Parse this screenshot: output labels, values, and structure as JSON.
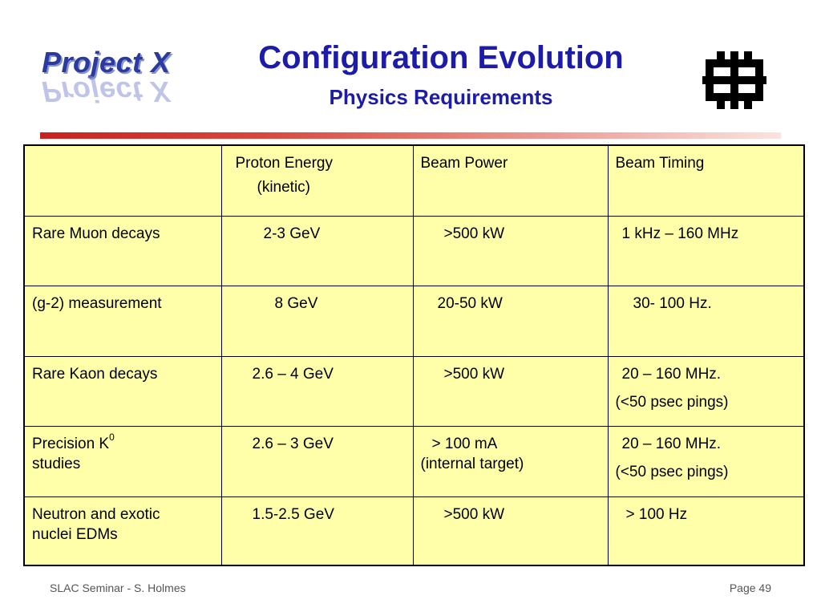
{
  "logo": {
    "text": "Project X"
  },
  "title": "Configuration Evolution",
  "subtitle": "Physics Requirements",
  "table": {
    "headers": [
      "",
      "Proton Energy",
      "(kinetic)",
      "Beam Power",
      "Beam Timing"
    ],
    "rows": [
      {
        "name": "Rare Muon decays",
        "energy": "2-3 GeV",
        "power": ">500 kW",
        "timing": "1 kHz – 160 MHz"
      },
      {
        "name": "(g-2) measurement",
        "energy": "8 GeV",
        "power": "20-50 kW",
        "timing": "30- 100 Hz."
      },
      {
        "name": "Rare Kaon decays",
        "energy": "2.6 – 4 GeV",
        "power": ">500 kW",
        "timing": "20 – 160 MHz.",
        "timing_note": "(<50 psec pings)"
      },
      {
        "name_line1": "Precision K",
        "name_sup": "0",
        "name_line2": "studies",
        "energy": "2.6 – 3 GeV",
        "power_line1": "> 100 mA",
        "power_line2": "(internal target)",
        "timing": "20 – 160 MHz.",
        "timing_note": "(<50 psec pings)"
      },
      {
        "name_line1": "Neutron and exotic",
        "name_line2": "nuclei EDMs",
        "energy": "1.5-2.5 GeV",
        "power": ">500 kW",
        "timing": "> 100 Hz"
      }
    ]
  },
  "footer": {
    "left": "SLAC Seminar - S. Holmes",
    "right": "Page 49"
  },
  "colors": {
    "title": "#1c1ca8",
    "table_bg": "#ffffaa",
    "divider_start": "#c8221e"
  },
  "icons": {
    "fermilab": "fermilab-logo-icon"
  }
}
